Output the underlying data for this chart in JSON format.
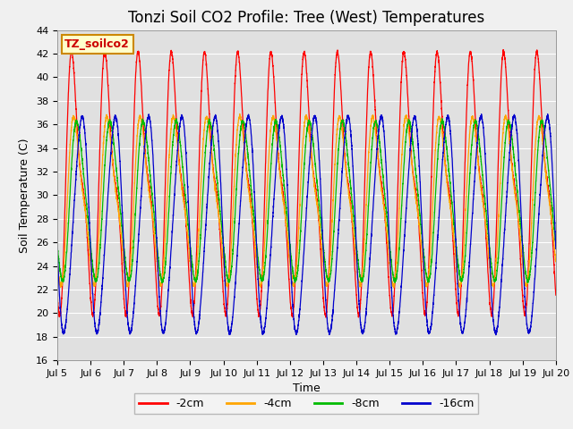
{
  "title": "Tonzi Soil CO2 Profile: Tree (West) Temperatures",
  "xlabel": "Time",
  "ylabel": "Soil Temperature (C)",
  "ylim": [
    16,
    44
  ],
  "xlim_days": [
    5,
    20
  ],
  "plot_bg_color": "#e0e0e0",
  "fig_bg_color": "#f0f0f0",
  "grid_color": "#ffffff",
  "lines": [
    {
      "label": "-2cm",
      "color": "#ff0000",
      "phase_shift": 0.0,
      "amp": 9.5,
      "base": 31.0,
      "skew": 0.35
    },
    {
      "label": "-4cm",
      "color": "#ffa500",
      "phase_shift": 0.05,
      "amp": 6.5,
      "base": 29.5,
      "skew": 0.25
    },
    {
      "label": "-8cm",
      "color": "#00bb00",
      "phase_shift": 0.12,
      "amp": 6.5,
      "base": 29.5,
      "skew": 0.15
    },
    {
      "label": "-16cm",
      "color": "#0000cc",
      "phase_shift": 0.22,
      "amp": 9.0,
      "base": 27.5,
      "skew": -0.1
    }
  ],
  "legend_label": "TZ_soilco2",
  "legend_box_facecolor": "#ffffcc",
  "legend_box_edgecolor": "#cc8800",
  "title_fontsize": 12,
  "axis_fontsize": 9,
  "tick_fontsize": 8,
  "legend_fontsize": 9
}
